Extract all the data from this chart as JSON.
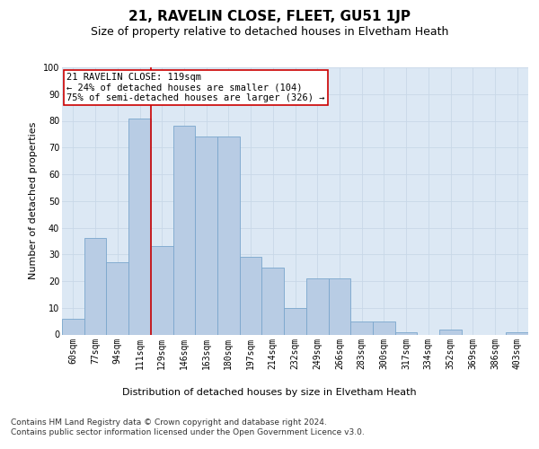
{
  "title": "21, RAVELIN CLOSE, FLEET, GU51 1JP",
  "subtitle": "Size of property relative to detached houses in Elvetham Heath",
  "xlabel": "Distribution of detached houses by size in Elvetham Heath",
  "ylabel": "Number of detached properties",
  "categories": [
    "60sqm",
    "77sqm",
    "94sqm",
    "111sqm",
    "129sqm",
    "146sqm",
    "163sqm",
    "180sqm",
    "197sqm",
    "214sqm",
    "232sqm",
    "249sqm",
    "266sqm",
    "283sqm",
    "300sqm",
    "317sqm",
    "334sqm",
    "352sqm",
    "369sqm",
    "386sqm",
    "403sqm"
  ],
  "values": [
    6,
    36,
    27,
    81,
    33,
    78,
    74,
    74,
    29,
    25,
    10,
    21,
    21,
    5,
    5,
    1,
    0,
    2,
    0,
    0,
    1
  ],
  "bar_color": "#b8cce4",
  "bar_edge_color": "#7aa6cc",
  "grid_color": "#c8d8e8",
  "background_color": "#dce8f4",
  "vline_color": "#cc0000",
  "annotation_text": "21 RAVELIN CLOSE: 119sqm\n← 24% of detached houses are smaller (104)\n75% of semi-detached houses are larger (326) →",
  "annotation_box_color": "#ffffff",
  "annotation_border_color": "#cc0000",
  "footer_text": "Contains HM Land Registry data © Crown copyright and database right 2024.\nContains public sector information licensed under the Open Government Licence v3.0.",
  "ylim": [
    0,
    100
  ],
  "title_fontsize": 11,
  "subtitle_fontsize": 9,
  "axis_label_fontsize": 8,
  "ylabel_fontsize": 8,
  "tick_fontsize": 7,
  "annotation_fontsize": 7.5,
  "footer_fontsize": 6.5
}
